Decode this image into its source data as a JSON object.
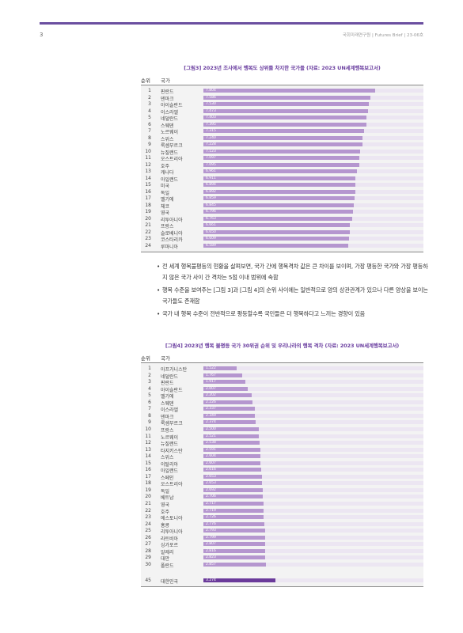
{
  "header": {
    "page_number": "3",
    "right_text": "국회미래연구원 | Futures Brief | 23-06호"
  },
  "figure3": {
    "title": "[그림3] 2023년 조사에서 행복도 상위를 차지한 국가들 (자료: 2023 UN세계행복보고서)",
    "col_rank": "순위",
    "col_country": "국가",
    "rows": [
      {
        "rank": "1",
        "country": "핀란드",
        "value": "7.804"
      },
      {
        "rank": "2",
        "country": "덴마크",
        "value": "7.586"
      },
      {
        "rank": "3",
        "country": "아이슬란드",
        "value": "7.530"
      },
      {
        "rank": "4",
        "country": "이스라엘",
        "value": "7.473"
      },
      {
        "rank": "5",
        "country": "네덜란드",
        "value": "7.403"
      },
      {
        "rank": "6",
        "country": "스웨덴",
        "value": "7.395"
      },
      {
        "rank": "7",
        "country": "노르웨이",
        "value": "7.315"
      },
      {
        "rank": "8",
        "country": "스위스",
        "value": "7.240"
      },
      {
        "rank": "9",
        "country": "룩셈부르크",
        "value": "7.228"
      },
      {
        "rank": "10",
        "country": "뉴질랜드",
        "value": "7.123"
      },
      {
        "rank": "11",
        "country": "오스트리아",
        "value": "7.097"
      },
      {
        "rank": "12",
        "country": "호주",
        "value": "7.095"
      },
      {
        "rank": "13",
        "country": "캐나다",
        "value": "6.961"
      },
      {
        "rank": "14",
        "country": "아일랜드",
        "value": "6.911"
      },
      {
        "rank": "15",
        "country": "미국",
        "value": "6.894"
      },
      {
        "rank": "16",
        "country": "독일",
        "value": "6.892"
      },
      {
        "rank": "17",
        "country": "벨기에",
        "value": "6.859"
      },
      {
        "rank": "18",
        "country": "체코",
        "value": "6.845"
      },
      {
        "rank": "19",
        "country": "영국",
        "value": "6.796"
      },
      {
        "rank": "20",
        "country": "리투아니아",
        "value": "6.763"
      },
      {
        "rank": "21",
        "country": "프랑스",
        "value": "6.661"
      },
      {
        "rank": "22",
        "country": "슬로베니아",
        "value": "6.650"
      },
      {
        "rank": "23",
        "country": "코스타리카",
        "value": "6.609"
      },
      {
        "rank": "24",
        "country": "루마니아",
        "value": "6.589"
      }
    ]
  },
  "bullets": [
    "전 세계 행복불평등의 현황을 살펴보면, 국가 간에 행복격차 값은 큰 차이를 보이며, 가장 평등한 국가와 가장 평등하지 않은 국가 사이 간 격차는 5점 이내 범위에 속함",
    "행복 수준을 보여주는 [그림 3]과 [그림 4]의 순위 사이에는 일반적으로 양의 상관관계가 있으나 다른 양상을 보이는 국가들도 존재함",
    "국가 내 행복 수준이 전반적으로 평등할수록 국민들은 더 행복하다고 느끼는 경향이 있음"
  ],
  "figure4": {
    "title": "[그림4] 2023년 행복 불평등 국가 30위권 순위 및 우리나라의 행복 격차 (자료: 2023 UN세계행복보고서)",
    "col_rank": "순위",
    "col_country": "국가",
    "rows": [
      {
        "rank": "1",
        "country": "아프가니스탄",
        "value": "1.522"
      },
      {
        "rank": "2",
        "country": "네덜란드",
        "value": "1.767"
      },
      {
        "rank": "3",
        "country": "핀란드",
        "value": "1.917"
      },
      {
        "rank": "4",
        "country": "아이슬란드",
        "value": "2.007"
      },
      {
        "rank": "5",
        "country": "벨기에",
        "value": "2.202"
      },
      {
        "rank": "6",
        "country": "스웨덴",
        "value": "2.226"
      },
      {
        "rank": "7",
        "country": "이스라엘",
        "value": "2.337"
      },
      {
        "rank": "8",
        "country": "덴마크",
        "value": "2.349"
      },
      {
        "rank": "9",
        "country": "룩셈부르크",
        "value": "2.374"
      },
      {
        "rank": "10",
        "country": "프랑스",
        "value": "2.500"
      },
      {
        "rank": "11",
        "country": "노르웨이",
        "value": "2.521"
      },
      {
        "rank": "12",
        "country": "뉴질랜드",
        "value": "2.538"
      },
      {
        "rank": "13",
        "country": "타지키스탄",
        "value": "2.591"
      },
      {
        "rank": "14",
        "country": "스위스",
        "value": "2.604"
      },
      {
        "rank": "15",
        "country": "이탈리아",
        "value": "2.607"
      },
      {
        "rank": "16",
        "country": "아일랜드",
        "value": "2.616"
      },
      {
        "rank": "17",
        "country": "스페인",
        "value": "2.653"
      },
      {
        "rank": "18",
        "country": "오스트리아",
        "value": "2.653"
      },
      {
        "rank": "19",
        "country": "독일",
        "value": "2.692"
      },
      {
        "rank": "20",
        "country": "베트남",
        "value": "2.706"
      },
      {
        "rank": "21",
        "country": "영국",
        "value": "2.717"
      },
      {
        "rank": "22",
        "country": "호주",
        "value": "2.719"
      },
      {
        "rank": "23",
        "country": "에스토니아",
        "value": "2.726"
      },
      {
        "rank": "24",
        "country": "홍콩",
        "value": "2.776"
      },
      {
        "rank": "25",
        "country": "리투아니아",
        "value": "2.793"
      },
      {
        "rank": "26",
        "country": "라트비아",
        "value": "2.799"
      },
      {
        "rank": "27",
        "country": "싱가포르",
        "value": "2.807"
      },
      {
        "rank": "28",
        "country": "알제리",
        "value": "2.816"
      },
      {
        "rank": "29",
        "country": "대만",
        "value": "2.823"
      },
      {
        "rank": "30",
        "country": "폴란드",
        "value": "2.857"
      }
    ],
    "highlight_row": {
      "rank": "45",
      "country": "대한민국",
      "value": "3.274"
    }
  },
  "chart_data": [
    {
      "type": "bar",
      "title": "[그림3] 2023년 조사에서 행복도 상위를 차지한 국가들 (자료: 2023 UN세계행복보고서)",
      "categories": [
        "핀란드",
        "덴마크",
        "아이슬란드",
        "이스라엘",
        "네덜란드",
        "스웨덴",
        "노르웨이",
        "스위스",
        "룩셈부르크",
        "뉴질랜드",
        "오스트리아",
        "호주",
        "캐나다",
        "아일랜드",
        "미국",
        "독일",
        "벨기에",
        "체코",
        "영국",
        "리투아니아",
        "프랑스",
        "슬로베니아",
        "코스타리카",
        "루마니아"
      ],
      "values": [
        7.804,
        7.586,
        7.53,
        7.473,
        7.403,
        7.395,
        7.315,
        7.24,
        7.228,
        7.123,
        7.097,
        7.095,
        6.961,
        6.911,
        6.894,
        6.892,
        6.859,
        6.845,
        6.796,
        6.763,
        6.661,
        6.65,
        6.609,
        6.589
      ],
      "xlim": [
        0,
        10
      ],
      "color": "#b596cf"
    },
    {
      "type": "bar",
      "title": "[그림4] 2023년 행복 불평등 국가 30위권 순위 및 우리나라의 행복 격차 (자료: 2023 UN세계행복보고서)",
      "categories": [
        "아프가니스탄",
        "네덜란드",
        "핀란드",
        "아이슬란드",
        "벨기에",
        "스웨덴",
        "이스라엘",
        "덴마크",
        "룩셈부르크",
        "프랑스",
        "노르웨이",
        "뉴질랜드",
        "타지키스탄",
        "스위스",
        "이탈리아",
        "아일랜드",
        "스페인",
        "오스트리아",
        "독일",
        "베트남",
        "영국",
        "호주",
        "에스토니아",
        "홍콩",
        "리투아니아",
        "라트비아",
        "싱가포르",
        "알제리",
        "대만",
        "폴란드",
        "대한민국"
      ],
      "values": [
        1.522,
        1.767,
        1.917,
        2.007,
        2.202,
        2.226,
        2.337,
        2.349,
        2.374,
        2.5,
        2.521,
        2.538,
        2.591,
        2.604,
        2.607,
        2.616,
        2.653,
        2.653,
        2.692,
        2.706,
        2.717,
        2.719,
        2.726,
        2.776,
        2.793,
        2.799,
        2.807,
        2.816,
        2.823,
        2.857,
        3.274
      ],
      "xlim": [
        0,
        10
      ],
      "color": "#b596cf",
      "highlight_color": "#6a3a9a"
    }
  ]
}
